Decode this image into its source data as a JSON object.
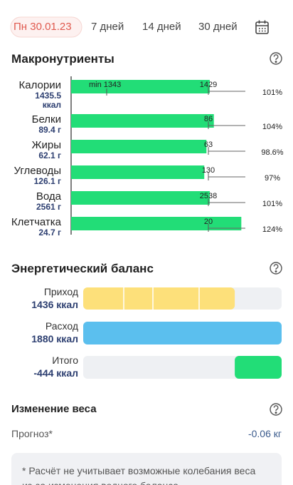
{
  "tabs": [
    "Пн 30.01.23",
    "7 дней",
    "14 дней",
    "30 дней"
  ],
  "macros": {
    "title": "Макронутриенты",
    "min_label": "min 1343",
    "items": [
      {
        "name": "Калории",
        "amount": "1435.5 ккал",
        "target": "1429",
        "percent": "101%"
      },
      {
        "name": "Белки",
        "amount": "89.4 г",
        "target": "86",
        "percent": "104%"
      },
      {
        "name": "Жиры",
        "amount": "62.1 г",
        "target": "63",
        "percent": "98.6%"
      },
      {
        "name": "Углеводы",
        "amount": "126.1 г",
        "target": "130",
        "percent": "97%"
      },
      {
        "name": "Вода",
        "amount": "2561 г",
        "target": "2538",
        "percent": "101%"
      },
      {
        "name": "Клетчатка",
        "amount": "24.7 г",
        "target": "20",
        "percent": "124%"
      }
    ]
  },
  "energy": {
    "title": "Энергетический баланс",
    "rows": [
      {
        "label": "Приход",
        "value": "1436 ккал"
      },
      {
        "label": "Расход",
        "value": "1880 ккал"
      },
      {
        "label": "Итого",
        "value": "-444 ккал"
      }
    ]
  },
  "weight": {
    "title": "Изменение веса",
    "forecast_label": "Прогноз*",
    "forecast_value": "-0.06 кг",
    "note": "* Расчёт не учитывает возможные колебания веса из-за изменения водного баланса"
  }
}
